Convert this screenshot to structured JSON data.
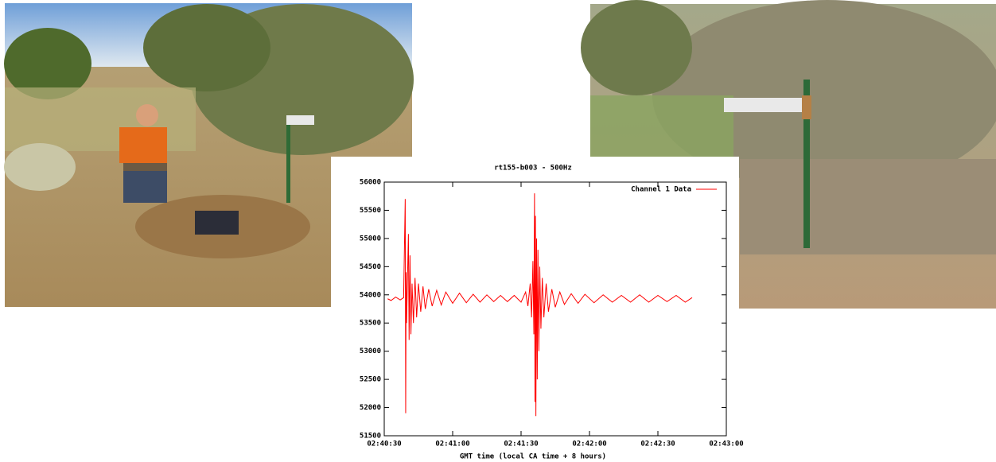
{
  "chart_data": {
    "type": "line",
    "title": "rt155-b003 - 500Hz",
    "x_label": "GMT time (local CA time + 8 hours)",
    "x": [
      9631.5,
      9633,
      9635,
      9637,
      9638.5,
      9639.2,
      9639.4,
      9639.6,
      9639.8,
      9640.2,
      9640.6,
      9640.9,
      9641.3,
      9641.7,
      9642.2,
      9642.8,
      9643.5,
      9644.2,
      9645,
      9646,
      9647,
      9648,
      9649.5,
      9651,
      9653,
      9655,
      9657,
      9660,
      9663,
      9666,
      9669,
      9672,
      9675,
      9678,
      9681,
      9684,
      9687,
      9690,
      9692,
      9693,
      9694,
      9694.6,
      9695.2,
      9695.6,
      9695.9,
      9696.1,
      9696.3,
      9696.5,
      9696.8,
      9697.1,
      9697.4,
      9697.8,
      9698.2,
      9698.7,
      9699.3,
      9700,
      9701,
      9702,
      9703.5,
      9705,
      9707,
      9709,
      9712,
      9715,
      9718,
      9722,
      9726,
      9730,
      9734,
      9738,
      9742,
      9746,
      9750,
      9754,
      9758,
      9762,
      9765
    ],
    "series": [
      {
        "name": "Channel 1 Data",
        "color": "#ff0000",
        "values": [
          53930,
          53900,
          53960,
          53910,
          53950,
          55700,
          51900,
          54400,
          53500,
          54300,
          55080,
          53200,
          54700,
          53300,
          54200,
          53500,
          54300,
          53600,
          54200,
          53700,
          54150,
          53750,
          54100,
          53800,
          54080,
          53820,
          54050,
          53850,
          54030,
          53860,
          54010,
          53870,
          54000,
          53880,
          53990,
          53880,
          53990,
          53870,
          54050,
          53800,
          54200,
          53600,
          54600,
          53300,
          55800,
          52100,
          55400,
          51850,
          55000,
          52500,
          54800,
          53000,
          54500,
          53400,
          54300,
          53600,
          54200,
          53700,
          54100,
          53780,
          54050,
          53830,
          54020,
          53850,
          54010,
          53860,
          54000,
          53870,
          53990,
          53870,
          54000,
          53870,
          53990,
          53880,
          53990,
          53870,
          53950
        ]
      }
    ],
    "xlim": [
      9630,
      9780
    ],
    "xticks": [
      {
        "value": 9630,
        "label": "02:40:30"
      },
      {
        "value": 9660,
        "label": "02:41:00"
      },
      {
        "value": 9690,
        "label": "02:41:30"
      },
      {
        "value": 9720,
        "label": "02:42:00"
      },
      {
        "value": 9750,
        "label": "02:42:30"
      },
      {
        "value": 9780,
        "label": "02:43:00"
      }
    ],
    "ylim": [
      51500,
      56000
    ],
    "yticks": [
      51500,
      52000,
      52500,
      53000,
      53500,
      54000,
      54500,
      55000,
      55500,
      56000
    ],
    "legend": "top-right",
    "grid": false
  }
}
